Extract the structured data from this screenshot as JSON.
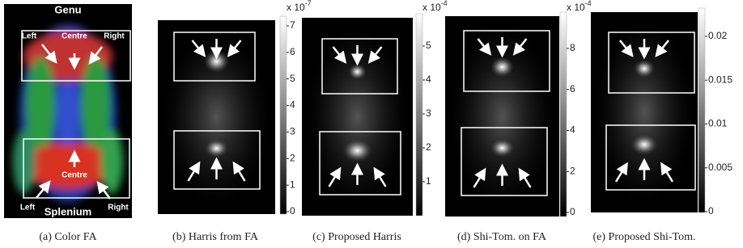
{
  "panels": [
    {
      "caption": "(a) Color FA",
      "annotations": {
        "genu": "Genu",
        "left_top": "Left",
        "centre_top": "Centre",
        "right_top": "Right",
        "centre_bottom": "Centre",
        "left_bottom": "Left",
        "right_bottom": "Right",
        "splenium": "Splenium"
      }
    },
    {
      "caption": "(b) Harris from FA",
      "colorbar": {
        "multiplier": {
          "base": "x 10",
          "exponent": "-7"
        },
        "ticks": [
          7,
          6,
          5,
          4,
          3,
          2,
          1,
          0
        ]
      }
    },
    {
      "caption": "(c) Proposed Harris",
      "colorbar": {
        "multiplier": {
          "base": "x 10",
          "exponent": "-4"
        },
        "ticks": [
          5,
          4,
          3,
          2,
          1
        ]
      }
    },
    {
      "caption": "(d) Shi-Tom. on FA",
      "colorbar": {
        "multiplier": {
          "base": "x 10",
          "exponent": "-4"
        },
        "ticks": [
          8,
          6,
          4,
          2,
          0
        ]
      }
    },
    {
      "caption": "(e) Proposed Shi-Tom.",
      "colorbar": {
        "ticks": [
          0.02,
          0.015,
          0.01,
          0.005,
          0
        ]
      }
    }
  ]
}
